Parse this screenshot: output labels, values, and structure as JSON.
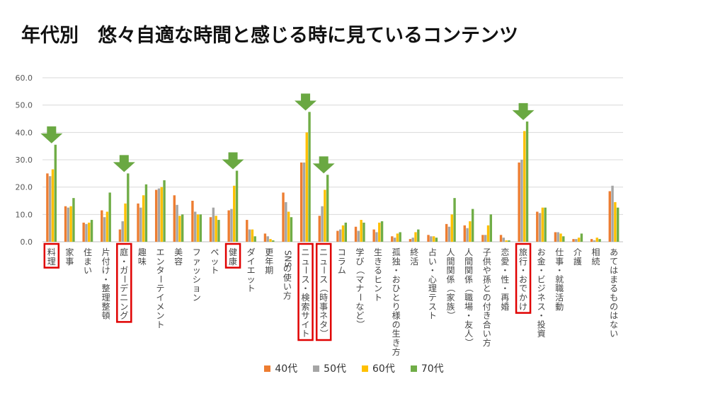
{
  "title": "年代別　悠々自適な時間と感じる時に見ているコンテンツ",
  "chart_data": {
    "type": "bar",
    "title": "年代別　悠々自適な時間と感じる時に見ているコンテンツ",
    "xlabel": "",
    "ylabel": "",
    "ylim": [
      0,
      60
    ],
    "yticks": [
      "0.0",
      "10.0",
      "20.0",
      "30.0",
      "40.0",
      "50.0",
      "60.0"
    ],
    "grid": true,
    "legend_position": "bottom",
    "categories": [
      "料理",
      "家事",
      "住まい",
      "片付け・整理整頓",
      "庭・ガーデニング",
      "趣味",
      "エンターテイメント",
      "美容",
      "ファッション",
      "ペット",
      "健康",
      "ダイエット",
      "更年期",
      "SNSの使い方",
      "ニュース・検索サイト",
      "ニュース（時事ネタ）",
      "コラム",
      "学び（マナーなど）",
      "生きるヒント",
      "孤独・おひとり様の生き方",
      "終活",
      "占い・心理テスト",
      "人間関係（家族）",
      "人間関係（職場・友人）",
      "子供や孫との付き合い方",
      "恋愛・性・再婚",
      "旅行・おでかけ",
      "お金・ビジネス・投資",
      "仕事・就職活動",
      "介護",
      "相続",
      "あてはまるものはない"
    ],
    "series": [
      {
        "name": "40代",
        "color": "#ed7d31",
        "values": [
          25.0,
          13.0,
          7.0,
          11.5,
          4.5,
          14.0,
          19.0,
          17.0,
          15.0,
          9.0,
          11.5,
          8.0,
          3.0,
          18.0,
          29.0,
          9.5,
          4.0,
          5.5,
          4.5,
          2.0,
          1.0,
          2.5,
          6.5,
          6.0,
          2.5,
          2.5,
          29.0,
          11.0,
          3.5,
          1.0,
          1.0,
          18.5
        ]
      },
      {
        "name": "50代",
        "color": "#a5a5a5",
        "values": [
          24.0,
          12.5,
          6.5,
          9.0,
          7.5,
          12.5,
          19.5,
          13.5,
          11.0,
          12.5,
          12.0,
          4.5,
          2.0,
          14.5,
          29.0,
          13.0,
          4.5,
          4.0,
          3.5,
          1.5,
          1.5,
          2.0,
          5.5,
          5.0,
          2.5,
          1.5,
          30.0,
          10.5,
          3.5,
          1.0,
          0.5,
          20.5
        ]
      },
      {
        "name": "60代",
        "color": "#ffc000",
        "values": [
          26.5,
          13.0,
          7.0,
          11.0,
          14.0,
          17.0,
          20.0,
          9.5,
          10.0,
          9.5,
          20.5,
          4.5,
          1.0,
          11.0,
          40.0,
          19.0,
          6.0,
          8.0,
          7.0,
          3.0,
          3.5,
          2.0,
          10.0,
          7.5,
          6.0,
          0.5,
          40.5,
          12.5,
          3.0,
          1.5,
          1.5,
          14.5
        ]
      },
      {
        "name": "70代",
        "color": "#70ad47",
        "values": [
          35.5,
          16.0,
          8.0,
          18.0,
          25.0,
          21.0,
          22.5,
          10.0,
          10.0,
          8.0,
          26.0,
          2.0,
          0.5,
          9.0,
          47.5,
          24.5,
          7.0,
          7.0,
          7.5,
          3.5,
          4.5,
          1.5,
          16.0,
          12.0,
          10.0,
          0.5,
          44.0,
          12.5,
          2.0,
          3.0,
          1.0,
          12.5
        ]
      }
    ],
    "annotations": [
      {
        "type": "highlight-box",
        "category": "料理",
        "arrow": true
      },
      {
        "type": "highlight-box",
        "category": "庭・ガーデニング",
        "arrow": true
      },
      {
        "type": "highlight-box",
        "category": "健康",
        "arrow": true
      },
      {
        "type": "highlight-box",
        "category": "ニュース・検索サイト",
        "arrow": true
      },
      {
        "type": "highlight-box",
        "category": "ニュース（時事ネタ）",
        "arrow": true
      },
      {
        "type": "highlight-box",
        "category": "旅行・おでかけ",
        "arrow": true
      }
    ],
    "annotation_colors": {
      "box": "#e00000",
      "arrow": "#6aa842"
    }
  }
}
